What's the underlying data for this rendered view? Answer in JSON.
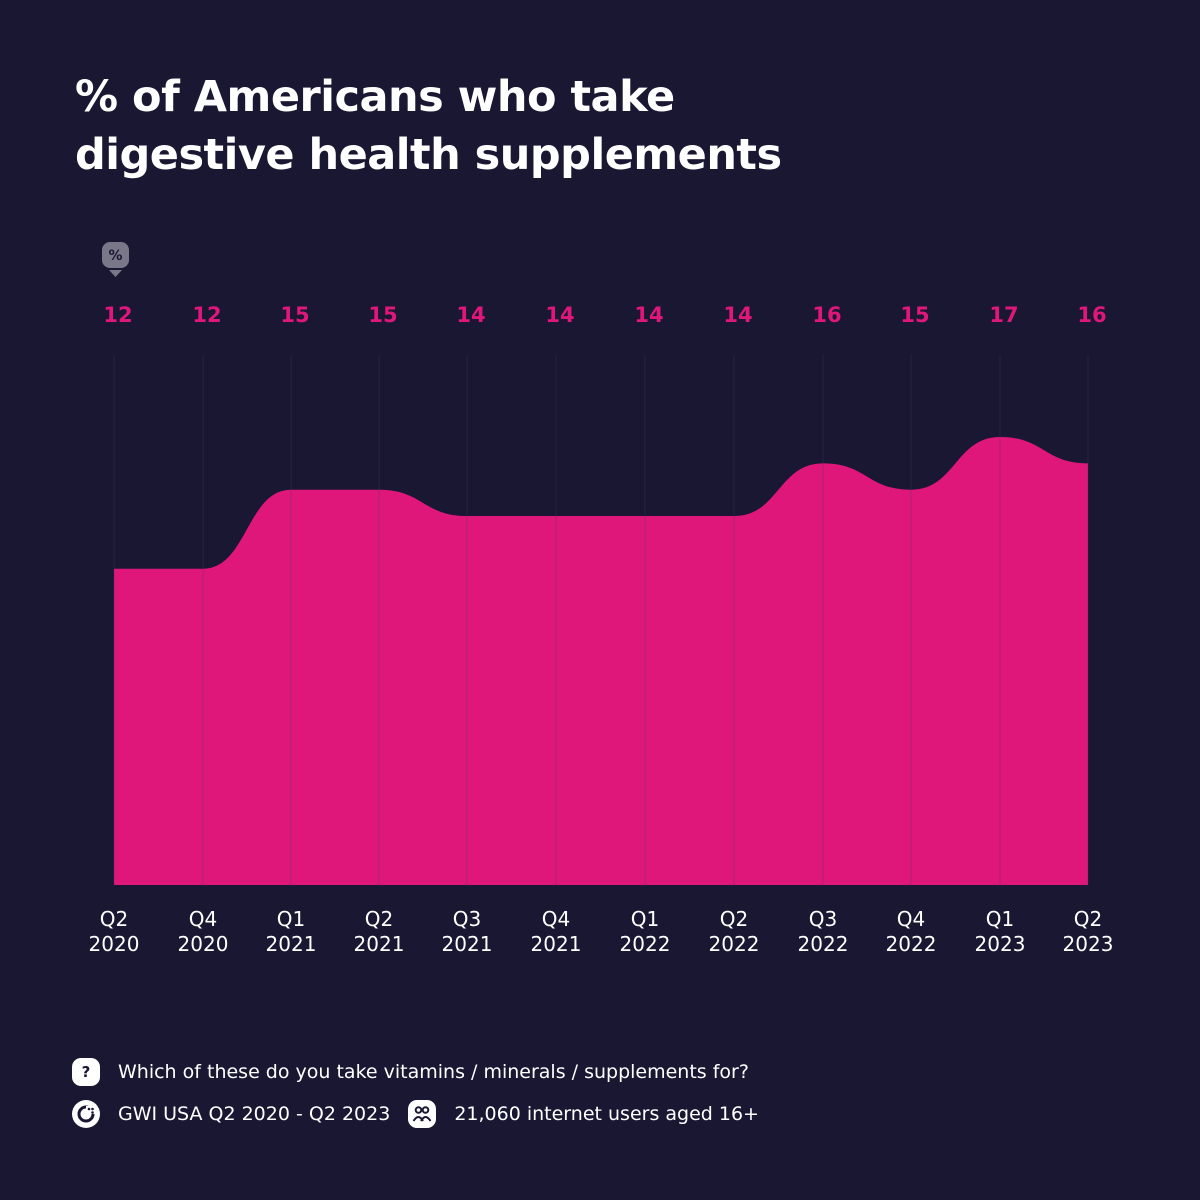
{
  "title_line1": "% of Americans who take",
  "title_line2": "digestive health supplements",
  "unit_badge": "%",
  "colors": {
    "background": "#1a1733",
    "area": "#e0177a",
    "labels": "#e0177a",
    "grid": "#3b3852"
  },
  "chart_data": {
    "type": "area",
    "categories": [
      [
        "Q2",
        "2020"
      ],
      [
        "Q4",
        "2020"
      ],
      [
        "Q1",
        "2021"
      ],
      [
        "Q2",
        "2021"
      ],
      [
        "Q3",
        "2021"
      ],
      [
        "Q4",
        "2021"
      ],
      [
        "Q1",
        "2022"
      ],
      [
        "Q2",
        "2022"
      ],
      [
        "Q3",
        "2022"
      ],
      [
        "Q4",
        "2022"
      ],
      [
        "Q1",
        "2023"
      ],
      [
        "Q2",
        "2023"
      ]
    ],
    "values": [
      12,
      12,
      15,
      15,
      14,
      14,
      14,
      14,
      16,
      15,
      17,
      16
    ],
    "ylim": [
      0,
      17
    ],
    "unit": "%",
    "grid": "vertical"
  },
  "footer": {
    "question": "Which of these do you take vitamins / minerals / supplements for?",
    "source": "GWI USA Q2 2020 - Q2 2023",
    "sample": "21,060 internet users aged 16+",
    "icons": [
      "question-icon",
      "gwi-logo-icon",
      "users-icon"
    ]
  }
}
